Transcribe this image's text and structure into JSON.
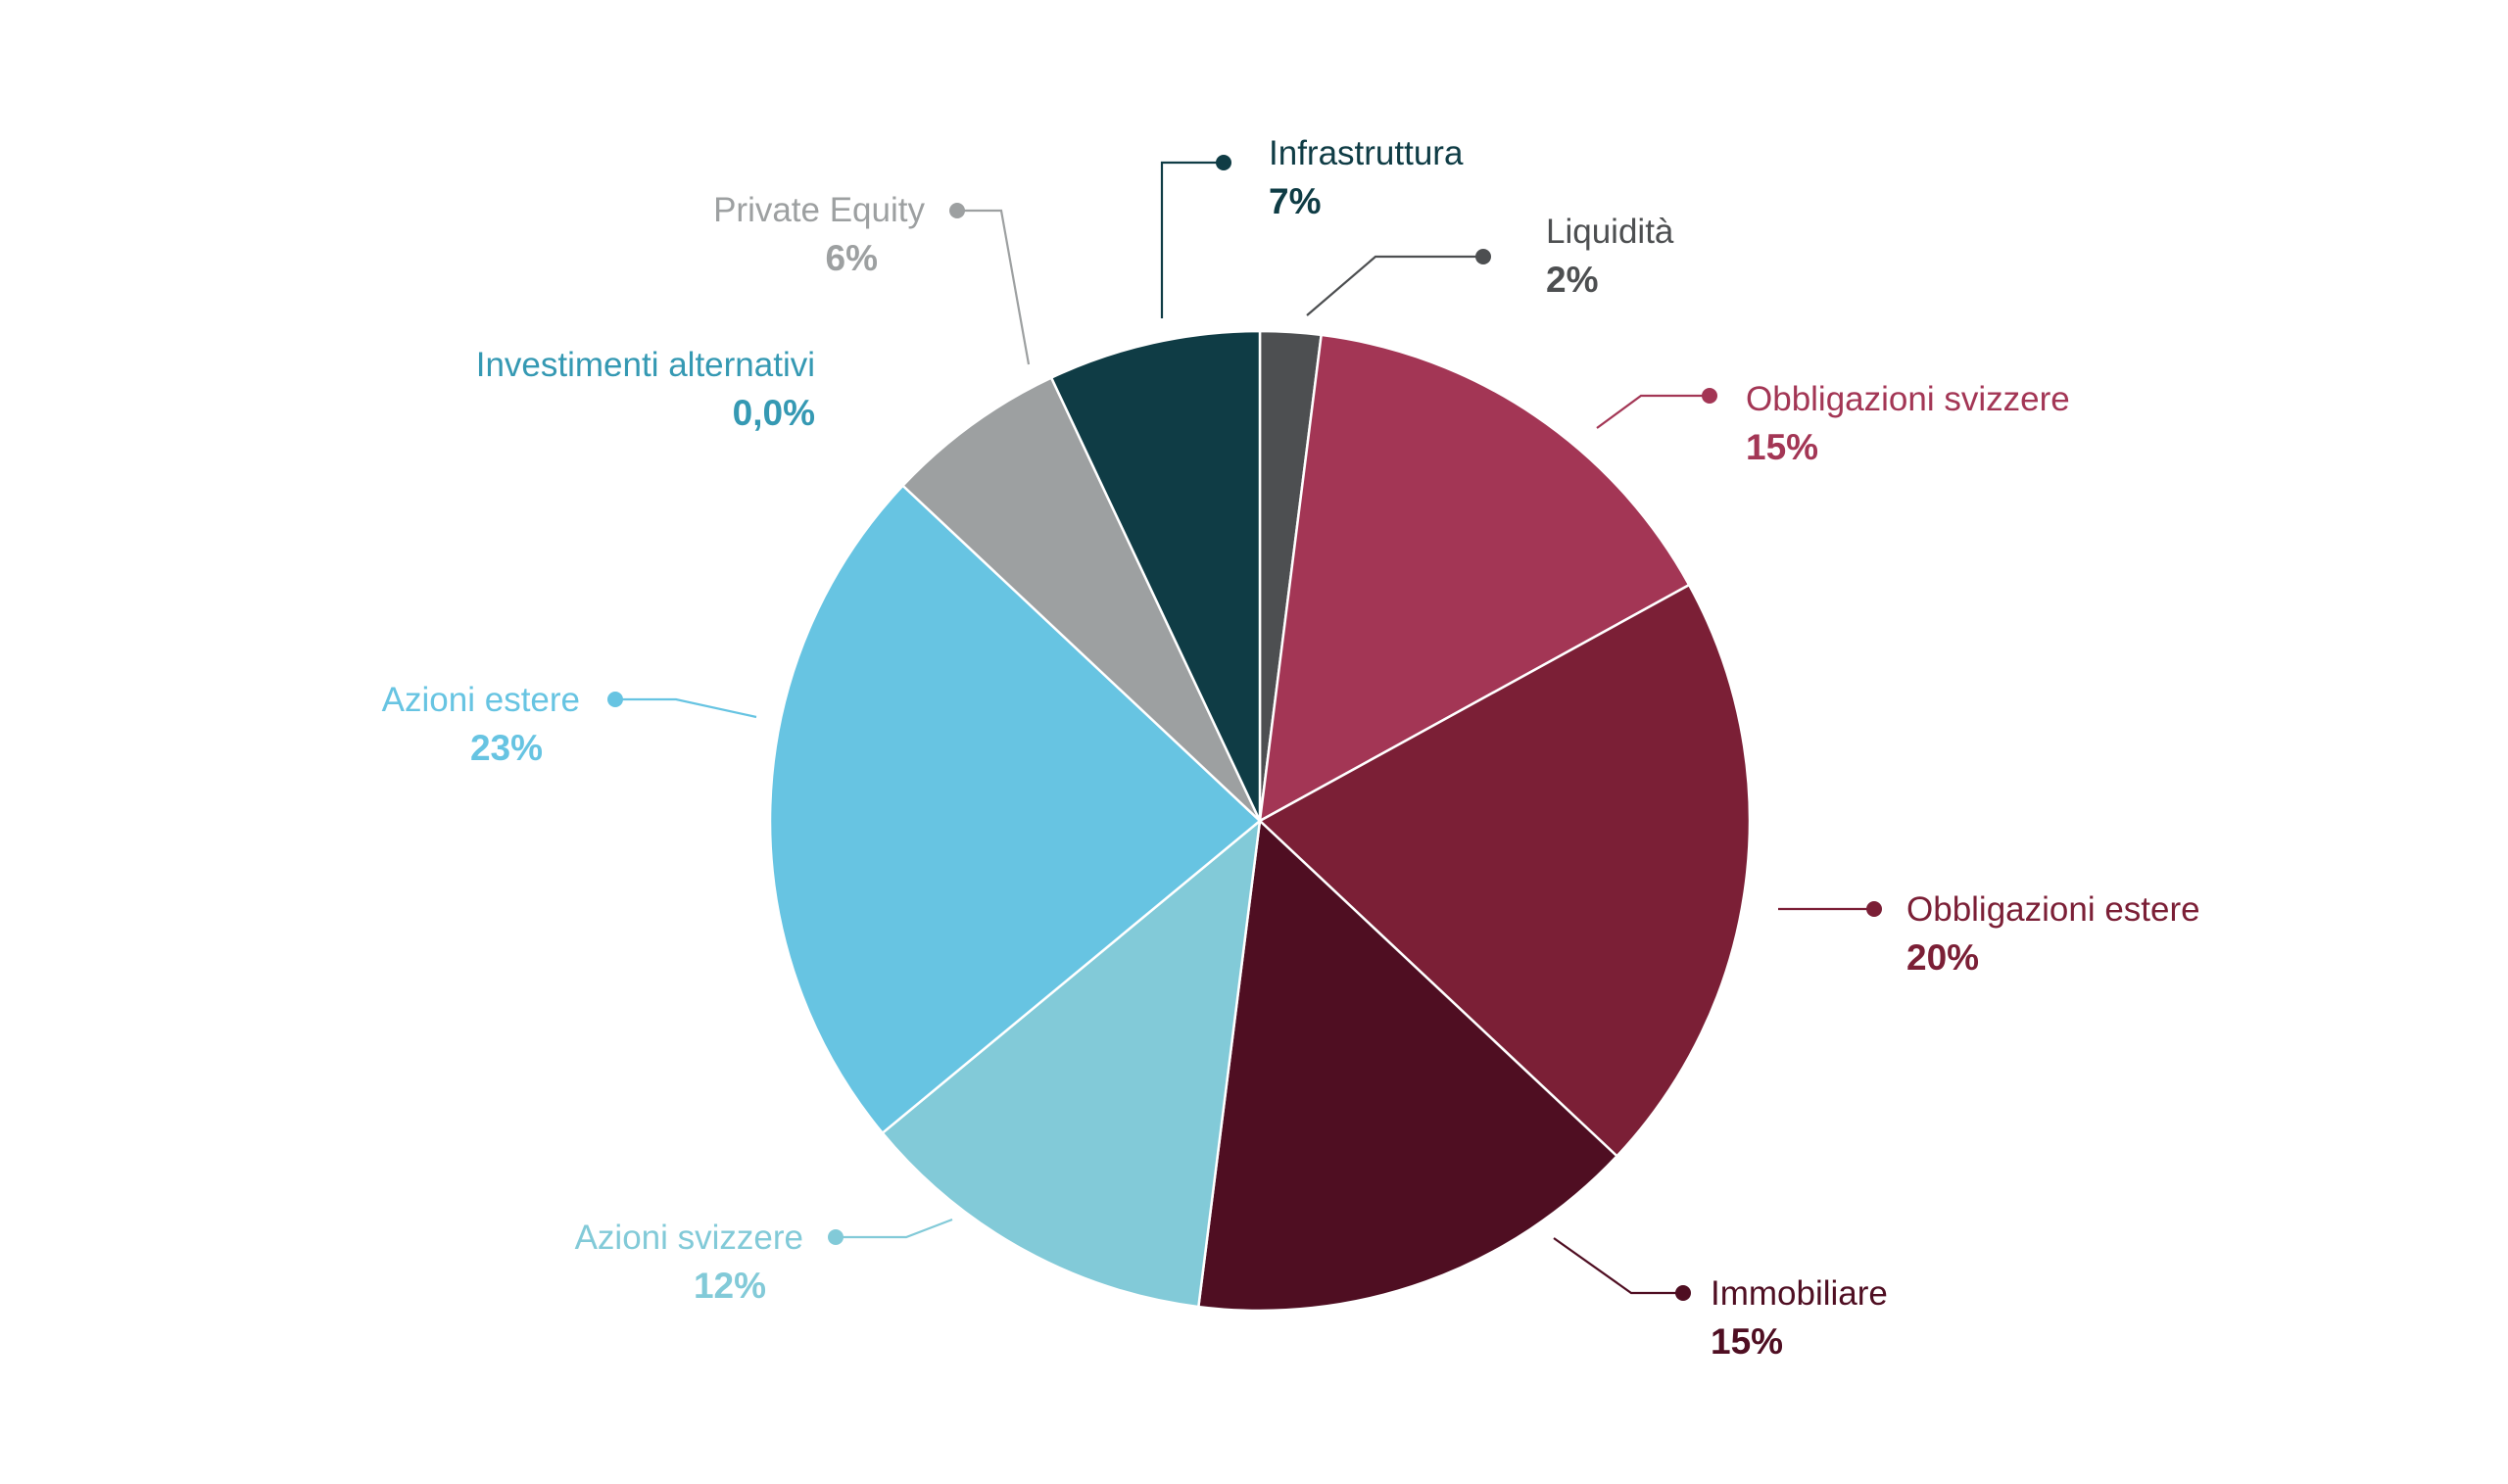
{
  "chart_data": {
    "type": "pie",
    "title": "",
    "slices": [
      {
        "label": "Liquidità",
        "value": 2,
        "display": "2%",
        "color": "#4d4f51"
      },
      {
        "label": "Obbligazioni svizzere",
        "value": 15,
        "display": "15%",
        "color": "#a33655"
      },
      {
        "label": "Obbligazioni estere",
        "value": 20,
        "display": "20%",
        "color": "#7b1f36"
      },
      {
        "label": "Immobiliare",
        "value": 15,
        "display": "15%",
        "color": "#4f0e22"
      },
      {
        "label": "Azioni svizzere",
        "value": 12,
        "display": "12%",
        "color": "#82cad8"
      },
      {
        "label": "Azioni estere",
        "value": 23,
        "display": "23%",
        "color": "#67c4e2"
      },
      {
        "label": "Investimenti alternativi",
        "value": 0,
        "display": "0,0%",
        "color": "#3599b3"
      },
      {
        "label": "Private Equity",
        "value": 6,
        "display": "6%",
        "color": "#9da0a1"
      },
      {
        "label": "Infrastruttura",
        "value": 7,
        "display": "7%",
        "color": "#0f3c45"
      }
    ],
    "start": "top",
    "direction": "clockwise",
    "legend": "none (callout labels)"
  }
}
